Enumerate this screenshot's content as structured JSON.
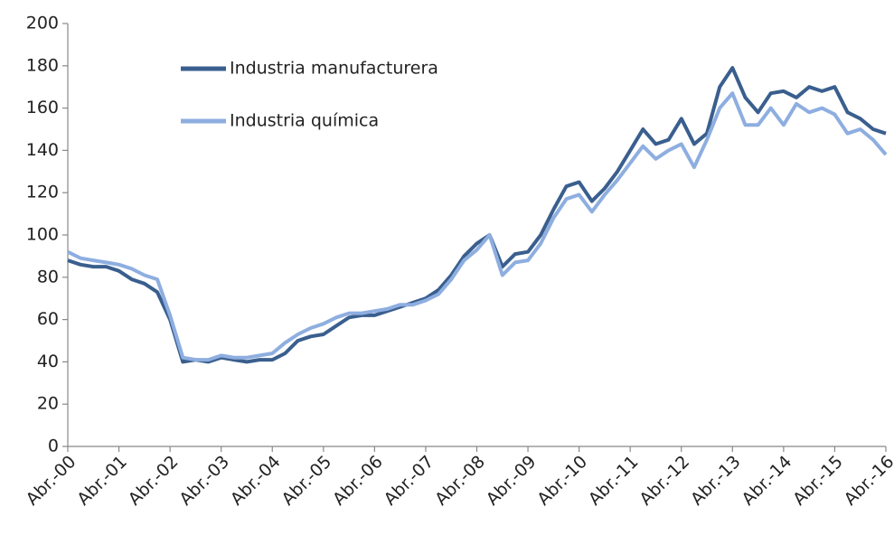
{
  "chart_data": {
    "type": "line",
    "categories": [
      "Abr.-00",
      null,
      null,
      null,
      "Abr.-01",
      null,
      null,
      null,
      "Abr.-02",
      null,
      null,
      null,
      "Abr.-03",
      null,
      null,
      null,
      "Abr.-04",
      null,
      null,
      null,
      "Abr.-05",
      null,
      null,
      null,
      "Abr.-06",
      null,
      null,
      null,
      "Abr.-07",
      null,
      null,
      null,
      "Abr.-08",
      null,
      null,
      null,
      "Abr.-09",
      null,
      null,
      null,
      "Abr.-10",
      null,
      null,
      null,
      "Abr.-11",
      null,
      null,
      null,
      "Abr.-12",
      null,
      null,
      null,
      "Abr.-13",
      null,
      null,
      null,
      "Abr.-14",
      null,
      null,
      null,
      "Abr.-15",
      null,
      null,
      null,
      "Abr.-16"
    ],
    "series": [
      {
        "name": "Industria manufacturera",
        "color": "#3a5f8e",
        "values": [
          88,
          86,
          85,
          85,
          83,
          79,
          77,
          73,
          60,
          40,
          41,
          40,
          42,
          41,
          40,
          41,
          41,
          44,
          50,
          52,
          53,
          57,
          61,
          62,
          62,
          64,
          66,
          68,
          70,
          74,
          81,
          90,
          96,
          100,
          85,
          91,
          92,
          100,
          112,
          123,
          125,
          116,
          122,
          130,
          140,
          150,
          143,
          145,
          155,
          143,
          148,
          170,
          179,
          165,
          158,
          167,
          168,
          165,
          170,
          168,
          170,
          158,
          155,
          150,
          148
        ]
      },
      {
        "name": "Industria química",
        "color": "#8eaee0",
        "values": [
          92,
          89,
          88,
          87,
          86,
          84,
          81,
          79,
          62,
          42,
          41,
          41,
          43,
          42,
          42,
          43,
          44,
          49,
          53,
          56,
          58,
          61,
          63,
          63,
          64,
          65,
          67,
          67,
          69,
          72,
          79,
          88,
          93,
          100,
          81,
          87,
          88,
          96,
          108,
          117,
          119,
          111,
          119,
          126,
          134,
          142,
          136,
          140,
          143,
          132,
          145,
          160,
          167,
          152,
          152,
          160,
          152,
          162,
          158,
          160,
          157,
          148,
          150,
          145,
          138
        ]
      }
    ],
    "ylim": [
      0,
      200
    ],
    "yticks": [
      0,
      20,
      40,
      60,
      80,
      100,
      120,
      140,
      160,
      180,
      200
    ],
    "legend": "upper left",
    "grid": false
  }
}
